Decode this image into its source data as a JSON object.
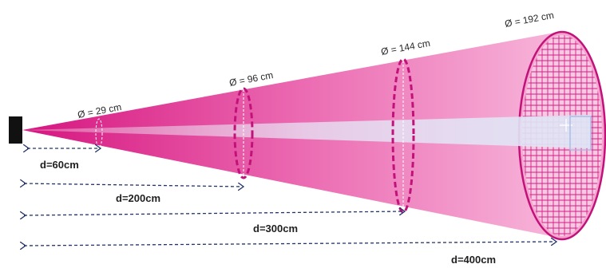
{
  "diagram": {
    "diameters": [
      {
        "label": "Ø = 29 cm"
      },
      {
        "label": "Ø = 96 cm"
      },
      {
        "label": "Ø = 144 cm"
      },
      {
        "label": "Ø = 192 cm"
      }
    ],
    "distances": [
      {
        "label": "d=60cm"
      },
      {
        "label": "d=200cm"
      },
      {
        "label": "d=300cm"
      },
      {
        "label": "d=400cm"
      }
    ],
    "colors": {
      "cone_dark": "#d6157f",
      "cone_light": "#f7b5da",
      "ellipse_stroke": "#c2127a",
      "arrow_stroke": "#23346b",
      "grid_stroke": "#d41f86",
      "beam": "#dfe4f5",
      "sensor": "#111111"
    }
  }
}
